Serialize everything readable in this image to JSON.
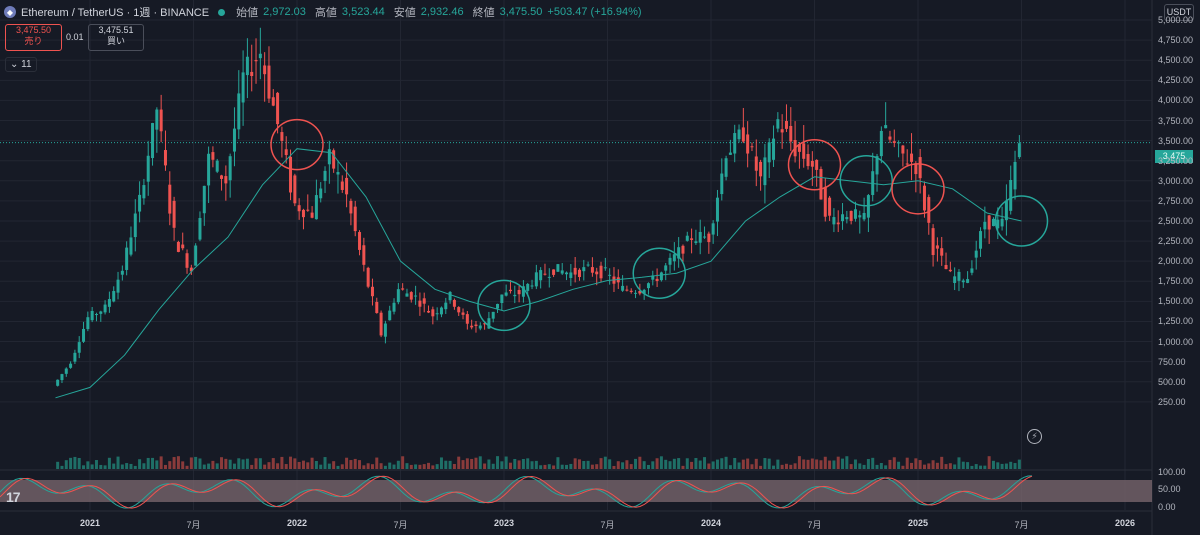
{
  "header": {
    "symbol": "Ethereum / TetherUS · 1週 · BINANCE",
    "open_label": "始値",
    "open": "2,972.03",
    "high_label": "高値",
    "high": "3,523.44",
    "low_label": "安値",
    "low": "2,932.46",
    "close_label": "終値",
    "close": "3,475.50",
    "change": "+503.47 (+16.94%)"
  },
  "trade": {
    "sell_price": "3,475.50",
    "sell_label": "売り",
    "spread": "0.01",
    "buy_price": "3,475.51",
    "buy_label": "買い"
  },
  "indicator_count": "11",
  "currency": "USDT",
  "last_price_label": "3,475",
  "rsi_label": "17",
  "colors": {
    "up": "#26a69a",
    "down": "#ef5350",
    "ma": "#26a69a",
    "bg": "#161a25",
    "grid": "#232733"
  },
  "chart_data": {
    "type": "candlestick",
    "y_ticks": [
      "5,000.00",
      "4,750.00",
      "4,500.00",
      "4,250.00",
      "4,000.00",
      "3,750.00",
      "3,500.00",
      "3,250.00",
      "3,000.00",
      "2,750.00",
      "2,500.00",
      "2,250.00",
      "2,000.00",
      "1,750.00",
      "1,500.00",
      "1,250.00",
      "1,000.00",
      "750.00",
      "500.00",
      "250.00"
    ],
    "y_tick_values": [
      5000,
      4750,
      4500,
      4250,
      4000,
      3750,
      3500,
      3250,
      3000,
      2750,
      2500,
      2250,
      2000,
      1750,
      1500,
      1250,
      1000,
      750,
      500,
      250
    ],
    "ylim": [
      -200,
      5150
    ],
    "x_ticks": [
      "2021",
      "7月",
      "2022",
      "7月",
      "2023",
      "7月",
      "2024",
      "7月",
      "2025",
      "7月",
      "2026"
    ],
    "x_tick_dates": [
      "2021-01",
      "2021-07",
      "2022-01",
      "2022-07",
      "2023-01",
      "2023-07",
      "2024-01",
      "2024-07",
      "2025-01",
      "2025-07",
      "2026-01"
    ],
    "close_series": [
      {
        "date": "2020-11",
        "close": 450
      },
      {
        "date": "2020-12",
        "close": 740
      },
      {
        "date": "2021-01",
        "close": 1300
      },
      {
        "date": "2021-02",
        "close": 1420
      },
      {
        "date": "2021-03",
        "close": 1900
      },
      {
        "date": "2021-04",
        "close": 2770
      },
      {
        "date": "2021-05",
        "close": 3900
      },
      {
        "date": "2021-06",
        "close": 2300
      },
      {
        "date": "2021-07",
        "close": 1900
      },
      {
        "date": "2021-08",
        "close": 3300
      },
      {
        "date": "2021-09",
        "close": 3000
      },
      {
        "date": "2021-10",
        "close": 4300
      },
      {
        "date": "2021-11",
        "close": 4600
      },
      {
        "date": "2021-12",
        "close": 3700
      },
      {
        "date": "2022-01",
        "close": 2700
      },
      {
        "date": "2022-02",
        "close": 2600
      },
      {
        "date": "2022-03",
        "close": 3300
      },
      {
        "date": "2022-04",
        "close": 2800
      },
      {
        "date": "2022-05",
        "close": 1900
      },
      {
        "date": "2022-06",
        "close": 1100
      },
      {
        "date": "2022-07",
        "close": 1650
      },
      {
        "date": "2022-08",
        "close": 1550
      },
      {
        "date": "2022-09",
        "close": 1330
      },
      {
        "date": "2022-10",
        "close": 1570
      },
      {
        "date": "2022-11",
        "close": 1200
      },
      {
        "date": "2022-12",
        "close": 1200
      },
      {
        "date": "2023-01",
        "close": 1580
      },
      {
        "date": "2023-02",
        "close": 1600
      },
      {
        "date": "2023-03",
        "close": 1800
      },
      {
        "date": "2023-04",
        "close": 1900
      },
      {
        "date": "2023-05",
        "close": 1850
      },
      {
        "date": "2023-06",
        "close": 1900
      },
      {
        "date": "2023-07",
        "close": 1850
      },
      {
        "date": "2023-08",
        "close": 1650
      },
      {
        "date": "2023-09",
        "close": 1650
      },
      {
        "date": "2023-10",
        "close": 1800
      },
      {
        "date": "2023-11",
        "close": 2050
      },
      {
        "date": "2023-12",
        "close": 2300
      },
      {
        "date": "2024-01",
        "close": 2300
      },
      {
        "date": "2024-02",
        "close": 3350
      },
      {
        "date": "2024-03",
        "close": 3600
      },
      {
        "date": "2024-04",
        "close": 3000
      },
      {
        "date": "2024-05",
        "close": 3750
      },
      {
        "date": "2024-06",
        "close": 3400
      },
      {
        "date": "2024-07",
        "close": 3200
      },
      {
        "date": "2024-08",
        "close": 2500
      },
      {
        "date": "2024-09",
        "close": 2600
      },
      {
        "date": "2024-10",
        "close": 2500
      },
      {
        "date": "2024-11",
        "close": 3650
      },
      {
        "date": "2024-12",
        "close": 3350
      },
      {
        "date": "2025-01",
        "close": 3200
      },
      {
        "date": "2025-02",
        "close": 2200
      },
      {
        "date": "2025-03",
        "close": 1800
      },
      {
        "date": "2025-04",
        "close": 1800
      },
      {
        "date": "2025-05",
        "close": 2500
      },
      {
        "date": "2025-06",
        "close": 2450
      },
      {
        "date": "2025-07",
        "close": 3475
      }
    ],
    "ma_series": [
      {
        "date": "2020-11",
        "value": 300
      },
      {
        "date": "2021-01",
        "value": 430
      },
      {
        "date": "2021-03",
        "value": 830
      },
      {
        "date": "2021-05",
        "value": 1400
      },
      {
        "date": "2021-07",
        "value": 1900
      },
      {
        "date": "2021-09",
        "value": 2300
      },
      {
        "date": "2021-11",
        "value": 2950
      },
      {
        "date": "2022-01",
        "value": 3400
      },
      {
        "date": "2022-03",
        "value": 3350
      },
      {
        "date": "2022-05",
        "value": 2800
      },
      {
        "date": "2022-07",
        "value": 2000
      },
      {
        "date": "2022-09",
        "value": 1650
      },
      {
        "date": "2022-11",
        "value": 1500
      },
      {
        "date": "2023-01",
        "value": 1380
      },
      {
        "date": "2023-03",
        "value": 1500
      },
      {
        "date": "2023-05",
        "value": 1650
      },
      {
        "date": "2023-07",
        "value": 1760
      },
      {
        "date": "2023-09",
        "value": 1800
      },
      {
        "date": "2023-11",
        "value": 1850
      },
      {
        "date": "2024-01",
        "value": 2000
      },
      {
        "date": "2024-03",
        "value": 2500
      },
      {
        "date": "2024-05",
        "value": 2800
      },
      {
        "date": "2024-07",
        "value": 3050
      },
      {
        "date": "2024-09",
        "value": 3000
      },
      {
        "date": "2024-11",
        "value": 2950
      },
      {
        "date": "2025-01",
        "value": 3000
      },
      {
        "date": "2025-03",
        "value": 2900
      },
      {
        "date": "2025-05",
        "value": 2600
      },
      {
        "date": "2025-07",
        "value": 2500
      }
    ],
    "circles": [
      {
        "date": "2022-01",
        "price": 3450,
        "color": "red"
      },
      {
        "date": "2023-01",
        "price": 1450,
        "color": "green"
      },
      {
        "date": "2023-10",
        "price": 1850,
        "color": "green"
      },
      {
        "date": "2024-07",
        "price": 3200,
        "color": "red"
      },
      {
        "date": "2024-10",
        "price": 3000,
        "color": "green"
      },
      {
        "date": "2025-01",
        "price": 2900,
        "color": "red"
      },
      {
        "date": "2025-07",
        "price": 2500,
        "color": "green"
      }
    ],
    "volume_axis": [
      "100.00",
      "50.00",
      "0.00"
    ],
    "stoch_axis": [
      100,
      50,
      0
    ]
  }
}
